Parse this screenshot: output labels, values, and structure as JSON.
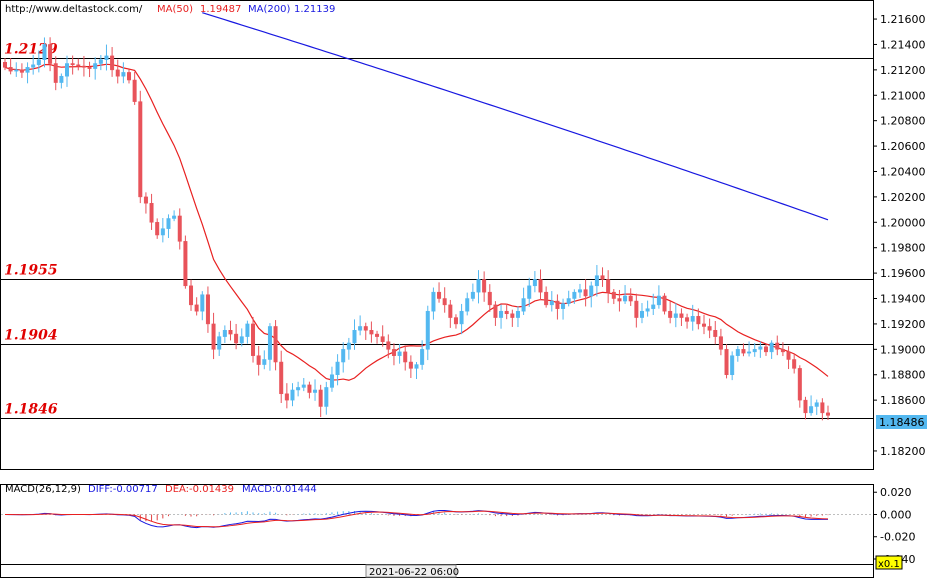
{
  "header": {
    "url": "http://www.deltastock.com/",
    "ma50_label": "MA(50)",
    "ma50_value": "1.19487",
    "ma200_label": "MA(200)",
    "ma200_value": "1.21139"
  },
  "colors": {
    "up_candle": "#53b8f0",
    "down_candle": "#e8535a",
    "ma50": "#e82020",
    "ma200": "#1818e0",
    "level_text": "#e00000",
    "macd_diff": "#1818e0",
    "macd_dea": "#e82020",
    "macd_hist": "#e04040"
  },
  "macd_header": {
    "name": "MACD(26,12,9)",
    "diff": "DIFF:-0.00717",
    "dea": "DEA:-0.01439",
    "macd": "MACD:0.01444"
  },
  "current_price_label": "1.18486",
  "time_label": "2021-06-22 06:00",
  "zoom_label": "x0.1",
  "chart_data": [
    {
      "type": "candlestick",
      "ylim": [
        1.1805,
        1.2175
      ],
      "price_ticks": [
        "1.21600",
        "1.21400",
        "1.21200",
        "1.21000",
        "1.20800",
        "1.20600",
        "1.20400",
        "1.20200",
        "1.20000",
        "1.19800",
        "1.19600",
        "1.19400",
        "1.19200",
        "1.19000",
        "1.18800",
        "1.18600",
        "1.18200"
      ],
      "levels": [
        {
          "label": "1.2129",
          "value": 1.2129
        },
        {
          "label": "1.1955",
          "value": 1.1955
        },
        {
          "label": "1.1904",
          "value": 1.1904
        },
        {
          "label": "1.1846",
          "value": 1.1846
        }
      ],
      "close": [
        1.2122,
        1.2119,
        1.212,
        1.2118,
        1.2122,
        1.2124,
        1.2128,
        1.214,
        1.2125,
        1.211,
        1.2115,
        1.2125,
        1.2124,
        1.2123,
        1.2122,
        1.2121,
        1.2125,
        1.2128,
        1.2131,
        1.212,
        1.2115,
        1.2118,
        1.2112,
        1.2095,
        1.202,
        1.2015,
        1.2,
        1.199,
        1.1995,
        1.2003,
        1.2005,
        1.1985,
        1.195,
        1.1935,
        1.193,
        1.1943,
        1.192,
        1.19,
        1.191,
        1.1915,
        1.1912,
        1.1905,
        1.191,
        1.192,
        1.1895,
        1.1888,
        1.1892,
        1.1918,
        1.189,
        1.1865,
        1.186,
        1.1868,
        1.187,
        1.1872,
        1.1866,
        1.1868,
        1.1855,
        1.187,
        1.188,
        1.189,
        1.19,
        1.1905,
        1.1915,
        1.1918,
        1.1915,
        1.1912,
        1.191,
        1.1906,
        1.19,
        1.1895,
        1.1898,
        1.189,
        1.1885,
        1.1888,
        1.19,
        1.193,
        1.1945,
        1.194,
        1.1935,
        1.1925,
        1.192,
        1.193,
        1.194,
        1.1945,
        1.1955,
        1.1945,
        1.1935,
        1.1925,
        1.193,
        1.1928,
        1.1925,
        1.193,
        1.194,
        1.195,
        1.1955,
        1.1945,
        1.1935,
        1.1938,
        1.1932,
        1.1936,
        1.194,
        1.1945,
        1.1947,
        1.1942,
        1.195,
        1.1958,
        1.1955,
        1.1945,
        1.194,
        1.1938,
        1.1942,
        1.1938,
        1.1925,
        1.193,
        1.1932,
        1.1935,
        1.1942,
        1.193,
        1.1925,
        1.1928,
        1.1925,
        1.1922,
        1.1926,
        1.192,
        1.1918,
        1.1915,
        1.191,
        1.19,
        1.188,
        1.1895,
        1.19,
        1.1897,
        1.1898,
        1.19,
        1.1902,
        1.1898,
        1.1905,
        1.19,
        1.1898,
        1.1892,
        1.1885,
        1.186,
        1.185,
        1.1855,
        1.1858,
        1.185,
        1.1848
      ],
      "macd": {
        "ylim": [
          -0.0445,
          0.0265
        ],
        "ticks": [
          "0.020",
          "0.000",
          "-0.020",
          "-0.040"
        ]
      },
      "x_label": "2021-06-22 06:00"
    }
  ]
}
